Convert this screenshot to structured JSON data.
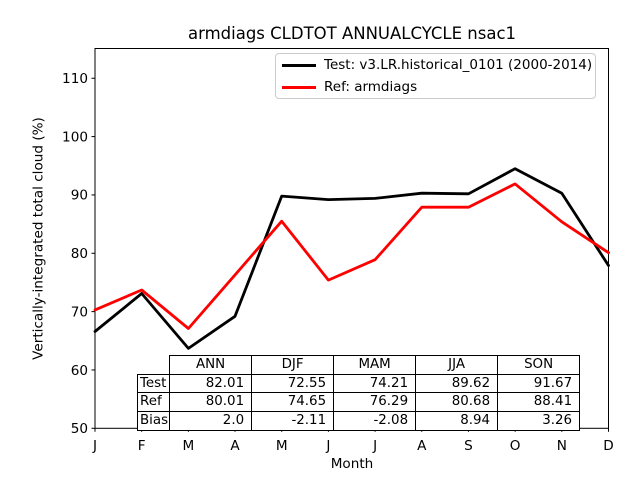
{
  "figure": {
    "title": "armdiags CLDTOT ANNUALCYCLE nsac1",
    "xlabel": "Month",
    "ylabel": "Vertically-integrated total cloud (%)"
  },
  "legend": {
    "items": [
      {
        "label": "Test: v3.LR.historical_0101 (2000-2014)",
        "color": "#000000"
      },
      {
        "label": "Ref: armdiags",
        "color": "#ff0000"
      }
    ]
  },
  "chart_data": {
    "type": "line",
    "title": "armdiags CLDTOT ANNUALCYCLE nsac1",
    "xlabel": "Month",
    "ylabel": "Vertically-integrated total cloud (%)",
    "x_tick_labels": [
      "J",
      "F",
      "M",
      "A",
      "M",
      "J",
      "J",
      "A",
      "S",
      "O",
      "N",
      "D"
    ],
    "yticks": [
      50,
      60,
      70,
      80,
      90,
      100,
      110
    ],
    "ylim": [
      50,
      115.1
    ],
    "grid": false,
    "legend_position": "upper center inside",
    "series": [
      {
        "name": "Test: v3.LR.historical_0101 (2000-2014)",
        "color": "#000000",
        "values": [
          66.6,
          73.1,
          63.7,
          69.2,
          89.8,
          89.2,
          89.4,
          90.3,
          90.2,
          94.5,
          90.3,
          77.9
        ]
      },
      {
        "name": "Ref: armdiags",
        "color": "#ff0000",
        "values": [
          70.3,
          73.7,
          67.1,
          76.3,
          85.5,
          75.4,
          78.9,
          87.9,
          87.9,
          91.9,
          85.4,
          80.1
        ]
      }
    ]
  },
  "table": {
    "columns": [
      "ANN",
      "DJF",
      "MAM",
      "JJA",
      "SON"
    ],
    "rows": [
      {
        "label": "Test",
        "values": [
          "82.01",
          "72.55",
          "74.21",
          "89.62",
          "91.67"
        ]
      },
      {
        "label": "Ref",
        "values": [
          "80.01",
          "74.65",
          "76.29",
          "80.68",
          "88.41"
        ]
      },
      {
        "label": "Bias",
        "values": [
          "2.0",
          "-2.11",
          "-2.08",
          "8.94",
          "3.26"
        ]
      }
    ]
  }
}
